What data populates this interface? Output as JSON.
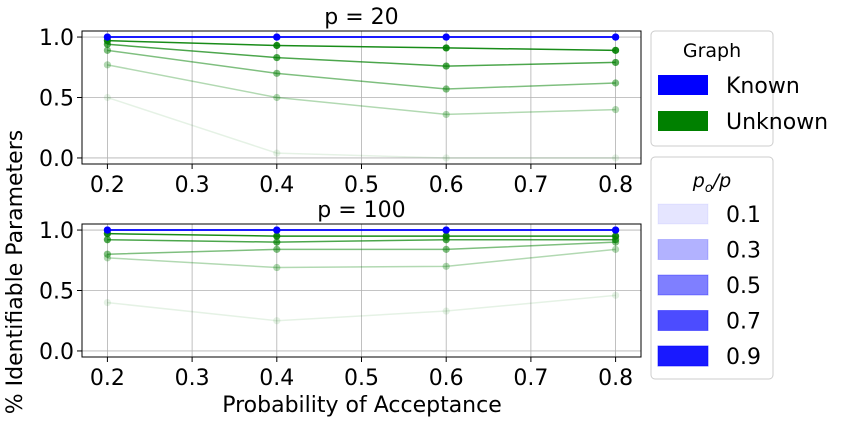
{
  "chart_data": [
    {
      "type": "line",
      "title": "p = 20",
      "xlabel": "Probability of Acceptance",
      "ylabel": "% Identifiable Parameters",
      "x": [
        0.2,
        0.4,
        0.6,
        0.8
      ],
      "xticks": [
        "0.2",
        "0.3",
        "0.4",
        "0.5",
        "0.6",
        "0.7",
        "0.8"
      ],
      "yticks": [
        "0.0",
        "0.5",
        "1.0"
      ],
      "xlim": [
        0.17,
        0.83
      ],
      "ylim": [
        -0.05,
        1.05
      ],
      "grid": true,
      "series": [
        {
          "group": "Known",
          "ratio": "0.1",
          "values": [
            1.0,
            1.0,
            1.0,
            1.0
          ]
        },
        {
          "group": "Known",
          "ratio": "0.3",
          "values": [
            1.0,
            1.0,
            1.0,
            1.0
          ]
        },
        {
          "group": "Known",
          "ratio": "0.5",
          "values": [
            1.0,
            1.0,
            1.0,
            1.0
          ]
        },
        {
          "group": "Known",
          "ratio": "0.7",
          "values": [
            1.0,
            1.0,
            1.0,
            1.0
          ]
        },
        {
          "group": "Known",
          "ratio": "0.9",
          "values": [
            1.0,
            1.0,
            1.0,
            1.0
          ]
        },
        {
          "group": "Unknown",
          "ratio": "0.1",
          "values": [
            0.5,
            0.04,
            0.0,
            0.0
          ]
        },
        {
          "group": "Unknown",
          "ratio": "0.3",
          "values": [
            0.77,
            0.5,
            0.36,
            0.4
          ]
        },
        {
          "group": "Unknown",
          "ratio": "0.5",
          "values": [
            0.89,
            0.7,
            0.57,
            0.62
          ]
        },
        {
          "group": "Unknown",
          "ratio": "0.7",
          "values": [
            0.94,
            0.83,
            0.76,
            0.79
          ]
        },
        {
          "group": "Unknown",
          "ratio": "0.9",
          "values": [
            0.97,
            0.93,
            0.91,
            0.89
          ]
        }
      ]
    },
    {
      "type": "line",
      "title": "p = 100",
      "x": [
        0.2,
        0.4,
        0.6,
        0.8
      ],
      "xticks": [
        "0.2",
        "0.3",
        "0.4",
        "0.5",
        "0.6",
        "0.7",
        "0.8"
      ],
      "yticks": [
        "0.0",
        "0.5",
        "1.0"
      ],
      "xlim": [
        0.17,
        0.83
      ],
      "ylim": [
        -0.05,
        1.05
      ],
      "grid": true,
      "series": [
        {
          "group": "Known",
          "ratio": "0.1",
          "values": [
            1.0,
            1.0,
            1.0,
            1.0
          ]
        },
        {
          "group": "Known",
          "ratio": "0.3",
          "values": [
            1.0,
            1.0,
            1.0,
            1.0
          ]
        },
        {
          "group": "Known",
          "ratio": "0.5",
          "values": [
            1.0,
            1.0,
            1.0,
            1.0
          ]
        },
        {
          "group": "Known",
          "ratio": "0.7",
          "values": [
            1.0,
            1.0,
            1.0,
            1.0
          ]
        },
        {
          "group": "Known",
          "ratio": "0.9",
          "values": [
            1.0,
            1.0,
            1.0,
            1.0
          ]
        },
        {
          "group": "Unknown",
          "ratio": "0.1",
          "values": [
            0.4,
            0.25,
            0.33,
            0.46
          ]
        },
        {
          "group": "Unknown",
          "ratio": "0.3",
          "values": [
            0.77,
            0.69,
            0.7,
            0.84
          ]
        },
        {
          "group": "Unknown",
          "ratio": "0.5",
          "values": [
            0.8,
            0.84,
            0.84,
            0.9
          ]
        },
        {
          "group": "Unknown",
          "ratio": "0.7",
          "values": [
            0.92,
            0.9,
            0.92,
            0.92
          ]
        },
        {
          "group": "Unknown",
          "ratio": "0.9",
          "values": [
            0.97,
            0.95,
            0.95,
            0.95
          ]
        }
      ]
    }
  ],
  "colors": {
    "Known": "#0000ff",
    "Unknown": "#008000",
    "alphas": {
      "0.1": 0.1,
      "0.3": 0.3,
      "0.5": 0.5,
      "0.7": 0.7,
      "0.9": 0.9
    }
  },
  "legend_graph": {
    "title": "Graph",
    "items": [
      {
        "label": "Known",
        "color": "#0000ff"
      },
      {
        "label": "Unknown",
        "color": "#008000"
      }
    ]
  },
  "legend_ratio": {
    "title_main": "p",
    "title_sub": "o",
    "title_tail": "/p",
    "items": [
      {
        "label": "0.1",
        "alpha": 0.1
      },
      {
        "label": "0.3",
        "alpha": 0.3
      },
      {
        "label": "0.5",
        "alpha": 0.5
      },
      {
        "label": "0.7",
        "alpha": 0.7
      },
      {
        "label": "0.9",
        "alpha": 0.9
      }
    ],
    "swatch_color": "#0000ff"
  }
}
